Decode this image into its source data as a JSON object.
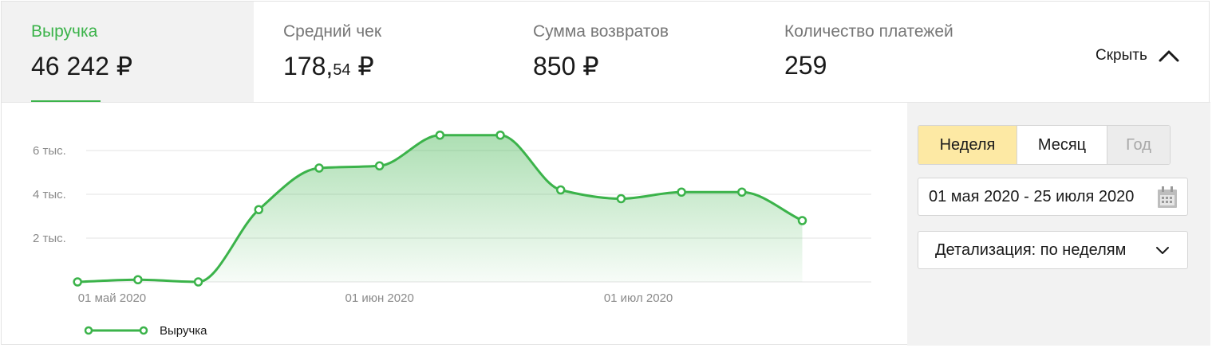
{
  "metrics": [
    {
      "label": "Выручка",
      "value_int": "46 242",
      "value_dec": "",
      "currency": "₽",
      "active": true
    },
    {
      "label": "Средний чек",
      "value_int": "178,",
      "value_dec": "54",
      "currency": "₽",
      "active": false
    },
    {
      "label": "Сумма возвратов",
      "value_int": "850",
      "value_dec": "",
      "currency": "₽",
      "active": false
    },
    {
      "label": "Количество платежей",
      "value_int": "259",
      "value_dec": "",
      "currency": "",
      "active": false
    }
  ],
  "hide_toggle": {
    "label": "Скрыть"
  },
  "period": {
    "options": [
      {
        "label": "Неделя",
        "state": "selected"
      },
      {
        "label": "Месяц",
        "state": "normal"
      },
      {
        "label": "Год",
        "state": "disabled"
      }
    ]
  },
  "date_range": {
    "value": "01 мая 2020 - 25 июля 2020"
  },
  "detail": {
    "label": "Детализация: по неделям"
  },
  "colors": {
    "accent": "#3bb34a",
    "selected_period": "#fde9a4"
  },
  "chart_data": {
    "type": "area",
    "x": [
      "2020-04-27",
      "2020-05-04",
      "2020-05-11",
      "2020-05-18",
      "2020-05-25",
      "2020-06-01",
      "2020-06-08",
      "2020-06-15",
      "2020-06-22",
      "2020-06-29",
      "2020-07-06",
      "2020-07-13",
      "2020-07-20"
    ],
    "x_ticks": [
      {
        "date": "2020-05-01",
        "label": "01 май 2020"
      },
      {
        "date": "2020-06-01",
        "label": "01 июн 2020"
      },
      {
        "date": "2020-07-01",
        "label": "01 июл 2020"
      }
    ],
    "x_range": [
      "2020-04-28",
      "2020-07-28"
    ],
    "y_ticks": [
      {
        "value": 2000,
        "label": "2 тыс."
      },
      {
        "value": 4000,
        "label": "4 тыс."
      },
      {
        "value": 6000,
        "label": "6 тыс."
      }
    ],
    "ylim": [
      0,
      6000
    ],
    "grid": true,
    "legend": "bottom-left",
    "series": [
      {
        "name": "Выручка",
        "color": "#3bb34a",
        "values": [
          0,
          100,
          0,
          3300,
          5200,
          5300,
          6700,
          6700,
          4200,
          3800,
          4100,
          4100,
          2800
        ]
      }
    ]
  }
}
